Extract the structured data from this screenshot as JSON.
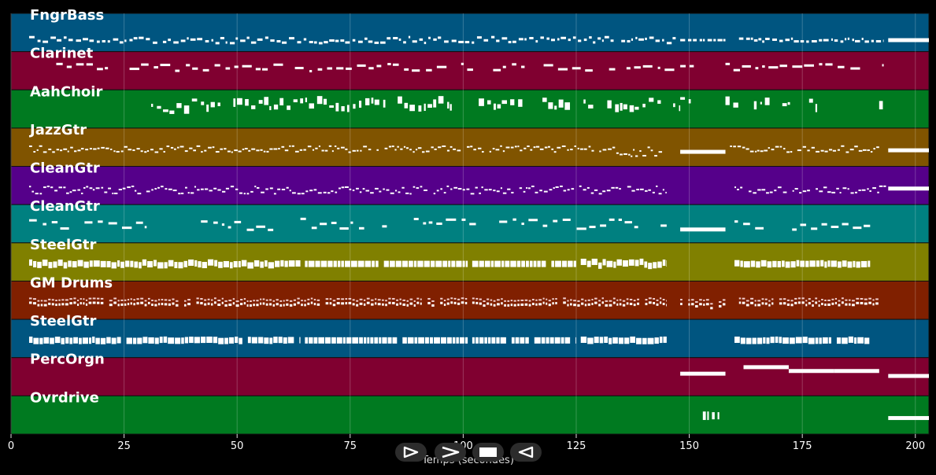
{
  "chart_data": {
    "type": "piano-roll",
    "xlabel": "Temps (secondes)",
    "xlim": [
      0,
      203
    ],
    "xticks": [
      0,
      25,
      50,
      75,
      100,
      125,
      150,
      175,
      200
    ],
    "grid": true,
    "tracks": [
      {
        "name": "FngrBass",
        "color": "#005580",
        "segments": [
          [
            4,
            147,
            0.7,
            0.08,
            "dots"
          ],
          [
            148,
            158,
            0.7,
            0.0,
            "dots"
          ],
          [
            161,
            193,
            0.7,
            0.04,
            "dots"
          ],
          [
            194,
            203,
            0.7,
            0.0,
            "bar"
          ]
        ]
      },
      {
        "name": "Clarinet",
        "color": "#800030",
        "segments": [
          [
            10,
            148,
            0.42,
            0.1,
            "dash"
          ],
          [
            148,
            151,
            0.38,
            0.0,
            "dash"
          ],
          [
            158,
            193,
            0.42,
            0.1,
            "dash"
          ]
        ]
      },
      {
        "name": "AahChoir",
        "color": "#007a20",
        "segments": [
          [
            31,
            40,
            0.5,
            0.1,
            "stack"
          ],
          [
            40,
            148,
            0.38,
            0.12,
            "stack"
          ],
          [
            148,
            151,
            0.3,
            0.08,
            "stack"
          ],
          [
            158,
            180,
            0.38,
            0.1,
            "stack"
          ],
          [
            192,
            193,
            0.4,
            0.0,
            "stack"
          ]
        ]
      },
      {
        "name": "JazzGtr",
        "color": "#805400",
        "segments": [
          [
            4,
            133,
            0.55,
            0.08,
            "wave"
          ],
          [
            133,
            145,
            0.62,
            0.12,
            "wave"
          ],
          [
            148,
            158,
            0.62,
            0.0,
            "bar"
          ],
          [
            159,
            192,
            0.55,
            0.08,
            "wave"
          ],
          [
            194,
            203,
            0.58,
            0.0,
            "bar"
          ]
        ]
      },
      {
        "name": "CleanGtr",
        "color": "#55008a",
        "segments": [
          [
            4,
            145,
            0.62,
            0.1,
            "wave"
          ],
          [
            160,
            192,
            0.62,
            0.08,
            "wave"
          ],
          [
            192,
            194,
            0.52,
            0.0,
            "wave"
          ],
          [
            194,
            203,
            0.58,
            0.0,
            "bar"
          ]
        ]
      },
      {
        "name": "CleanGtr",
        "color": "#008080",
        "segments": [
          [
            4,
            30,
            0.52,
            0.12,
            "dash"
          ],
          [
            42,
            58,
            0.55,
            0.12,
            "dash"
          ],
          [
            64,
            145,
            0.5,
            0.14,
            "dash"
          ],
          [
            148,
            158,
            0.65,
            0.0,
            "bar"
          ],
          [
            160,
            190,
            0.55,
            0.12,
            "dash"
          ]
        ]
      },
      {
        "name": "SteelGtr",
        "color": "#808000",
        "segments": [
          [
            4,
            64,
            0.55,
            0.04,
            "block"
          ],
          [
            65,
            101,
            0.55,
            0.0,
            "block"
          ],
          [
            102,
            125,
            0.55,
            0.0,
            "block"
          ],
          [
            126,
            145,
            0.55,
            0.06,
            "block"
          ],
          [
            160,
            190,
            0.55,
            0.02,
            "block"
          ]
        ]
      },
      {
        "name": "GM Drums",
        "color": "#802000",
        "segments": [
          [
            4,
            40,
            0.6,
            0.04,
            "drum"
          ],
          [
            41,
            101,
            0.6,
            0.04,
            "drum"
          ],
          [
            102,
            145,
            0.6,
            0.04,
            "drum"
          ],
          [
            148,
            158,
            0.65,
            0.06,
            "drum"
          ],
          [
            161,
            192,
            0.6,
            0.04,
            "drum"
          ]
        ]
      },
      {
        "name": "SteelGtr",
        "color": "#005580",
        "segments": [
          [
            4,
            64,
            0.55,
            0.02,
            "block"
          ],
          [
            65,
            101,
            0.55,
            0.0,
            "block"
          ],
          [
            102,
            125,
            0.55,
            0.0,
            "block"
          ],
          [
            126,
            145,
            0.55,
            0.02,
            "block"
          ],
          [
            160,
            190,
            0.55,
            0.02,
            "block"
          ]
        ]
      },
      {
        "name": "PercOrgn",
        "color": "#800030",
        "segments": [
          [
            148,
            158,
            0.42,
            0.0,
            "bar"
          ],
          [
            162,
            172,
            0.25,
            0.04,
            "bar"
          ],
          [
            172,
            182,
            0.35,
            0.08,
            "bar"
          ],
          [
            182,
            192,
            0.35,
            0.04,
            "bar"
          ],
          [
            194,
            203,
            0.48,
            0.0,
            "bar"
          ]
        ]
      },
      {
        "name": "Ovrdrive",
        "color": "#007a20",
        "segments": [
          [
            153,
            157,
            0.52,
            0.0,
            "stack"
          ],
          [
            194,
            203,
            0.58,
            0.0,
            "bar"
          ]
        ]
      }
    ]
  },
  "controls": {
    "play_icon": "play-icon",
    "fast_forward_icon": "fast-forward-icon",
    "stop_icon": "stop-icon",
    "rewind_icon": "rewind-icon"
  }
}
